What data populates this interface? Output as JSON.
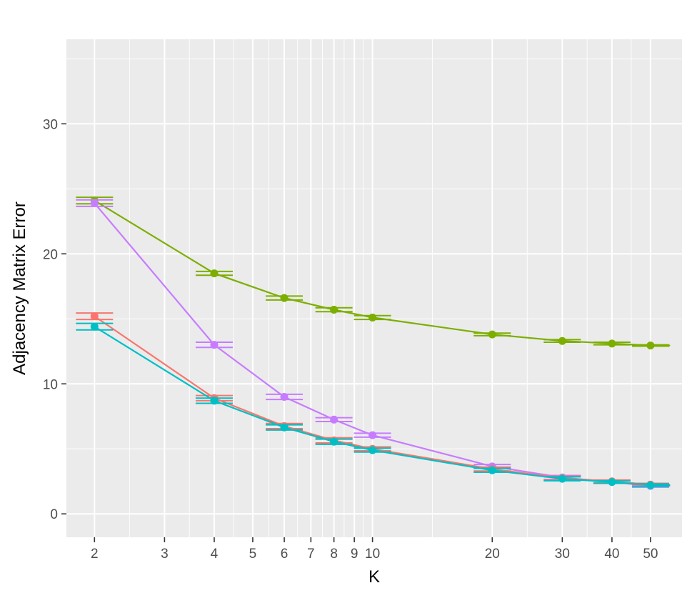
{
  "chart_data": {
    "type": "line",
    "xlabel": "K",
    "ylabel": "Adjacency Matrix Error",
    "x_scale": "log",
    "xlim": [
      1.7,
      60
    ],
    "ylim": [
      -1.8,
      36.5
    ],
    "x_ticks": [
      2,
      3,
      4,
      5,
      6,
      7,
      8,
      9,
      10,
      20,
      30,
      40,
      50
    ],
    "y_ticks": [
      0,
      10,
      20,
      30
    ],
    "grid": true,
    "legend": "none",
    "x": [
      2,
      4,
      6,
      8,
      10,
      20,
      30,
      40,
      50
    ],
    "series": [
      {
        "color": "#7cae00",
        "values": [
          24.1,
          18.5,
          16.6,
          15.7,
          15.1,
          13.8,
          13.3,
          13.1,
          12.95
        ],
        "error_low": [
          23.85,
          18.35,
          16.45,
          15.55,
          14.95,
          13.7,
          13.2,
          13.0,
          12.9
        ],
        "error_high": [
          24.35,
          18.65,
          16.75,
          15.85,
          15.25,
          13.9,
          13.4,
          13.2,
          13.0
        ]
      },
      {
        "color": "#c77cff",
        "values": [
          23.9,
          13.0,
          9.0,
          7.25,
          6.05,
          3.65,
          2.8,
          2.45,
          2.15
        ],
        "error_low": [
          23.65,
          12.8,
          8.8,
          7.1,
          5.9,
          3.5,
          2.65,
          2.35,
          2.05
        ],
        "error_high": [
          24.15,
          13.2,
          9.2,
          7.4,
          6.2,
          3.8,
          2.95,
          2.55,
          2.25
        ]
      },
      {
        "color": "#f8766d",
        "values": [
          15.2,
          8.9,
          6.75,
          5.65,
          5.0,
          3.45,
          2.75,
          2.5,
          2.25
        ],
        "error_low": [
          14.95,
          8.7,
          6.55,
          5.45,
          4.85,
          3.3,
          2.6,
          2.4,
          2.15
        ],
        "error_high": [
          15.45,
          9.1,
          6.95,
          5.85,
          5.15,
          3.6,
          2.9,
          2.6,
          2.35
        ]
      },
      {
        "color": "#00bfc4",
        "values": [
          14.4,
          8.7,
          6.65,
          5.55,
          4.9,
          3.35,
          2.7,
          2.45,
          2.2
        ],
        "error_low": [
          14.15,
          8.5,
          6.45,
          5.35,
          4.75,
          3.2,
          2.55,
          2.35,
          2.1
        ],
        "error_high": [
          14.65,
          8.9,
          6.85,
          5.75,
          5.05,
          3.5,
          2.85,
          2.55,
          2.3
        ]
      }
    ]
  }
}
